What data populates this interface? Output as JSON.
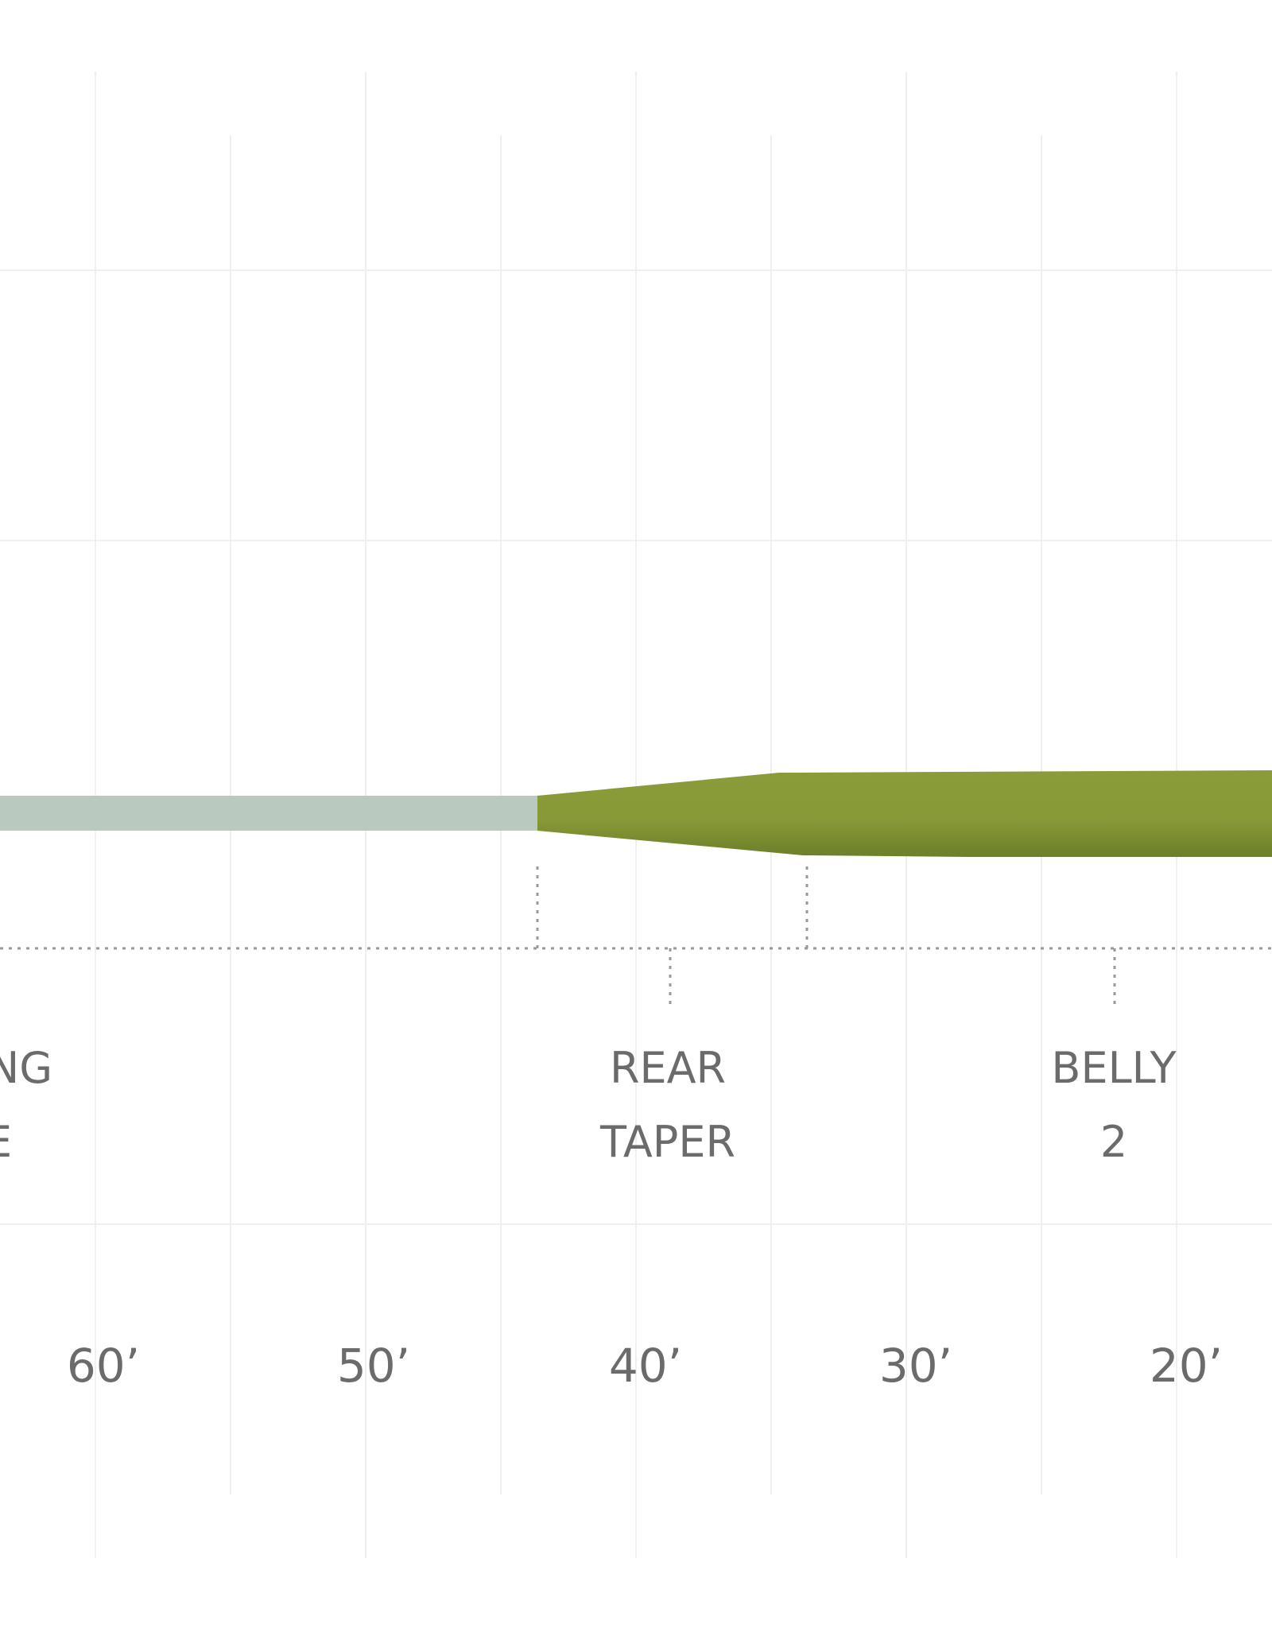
{
  "colors": {
    "background": "#ffffff",
    "grid": "#f0f0f0",
    "running_line": "#b9c9c0",
    "head_green_light": "#8a9b3a",
    "head_green_dark": "#6d7f28",
    "dotted": "#999999",
    "text": "#6b6b6b"
  },
  "sections": [
    {
      "id": "running-line",
      "lines": [
        "NG",
        "E"
      ]
    },
    {
      "id": "rear-taper",
      "lines": [
        "REAR",
        "TAPER"
      ]
    },
    {
      "id": "belly-2",
      "lines": [
        "BELLY",
        "2"
      ]
    }
  ],
  "axis": {
    "ticks": [
      "60’",
      "50’",
      "40’",
      "30’",
      "20’"
    ]
  }
}
